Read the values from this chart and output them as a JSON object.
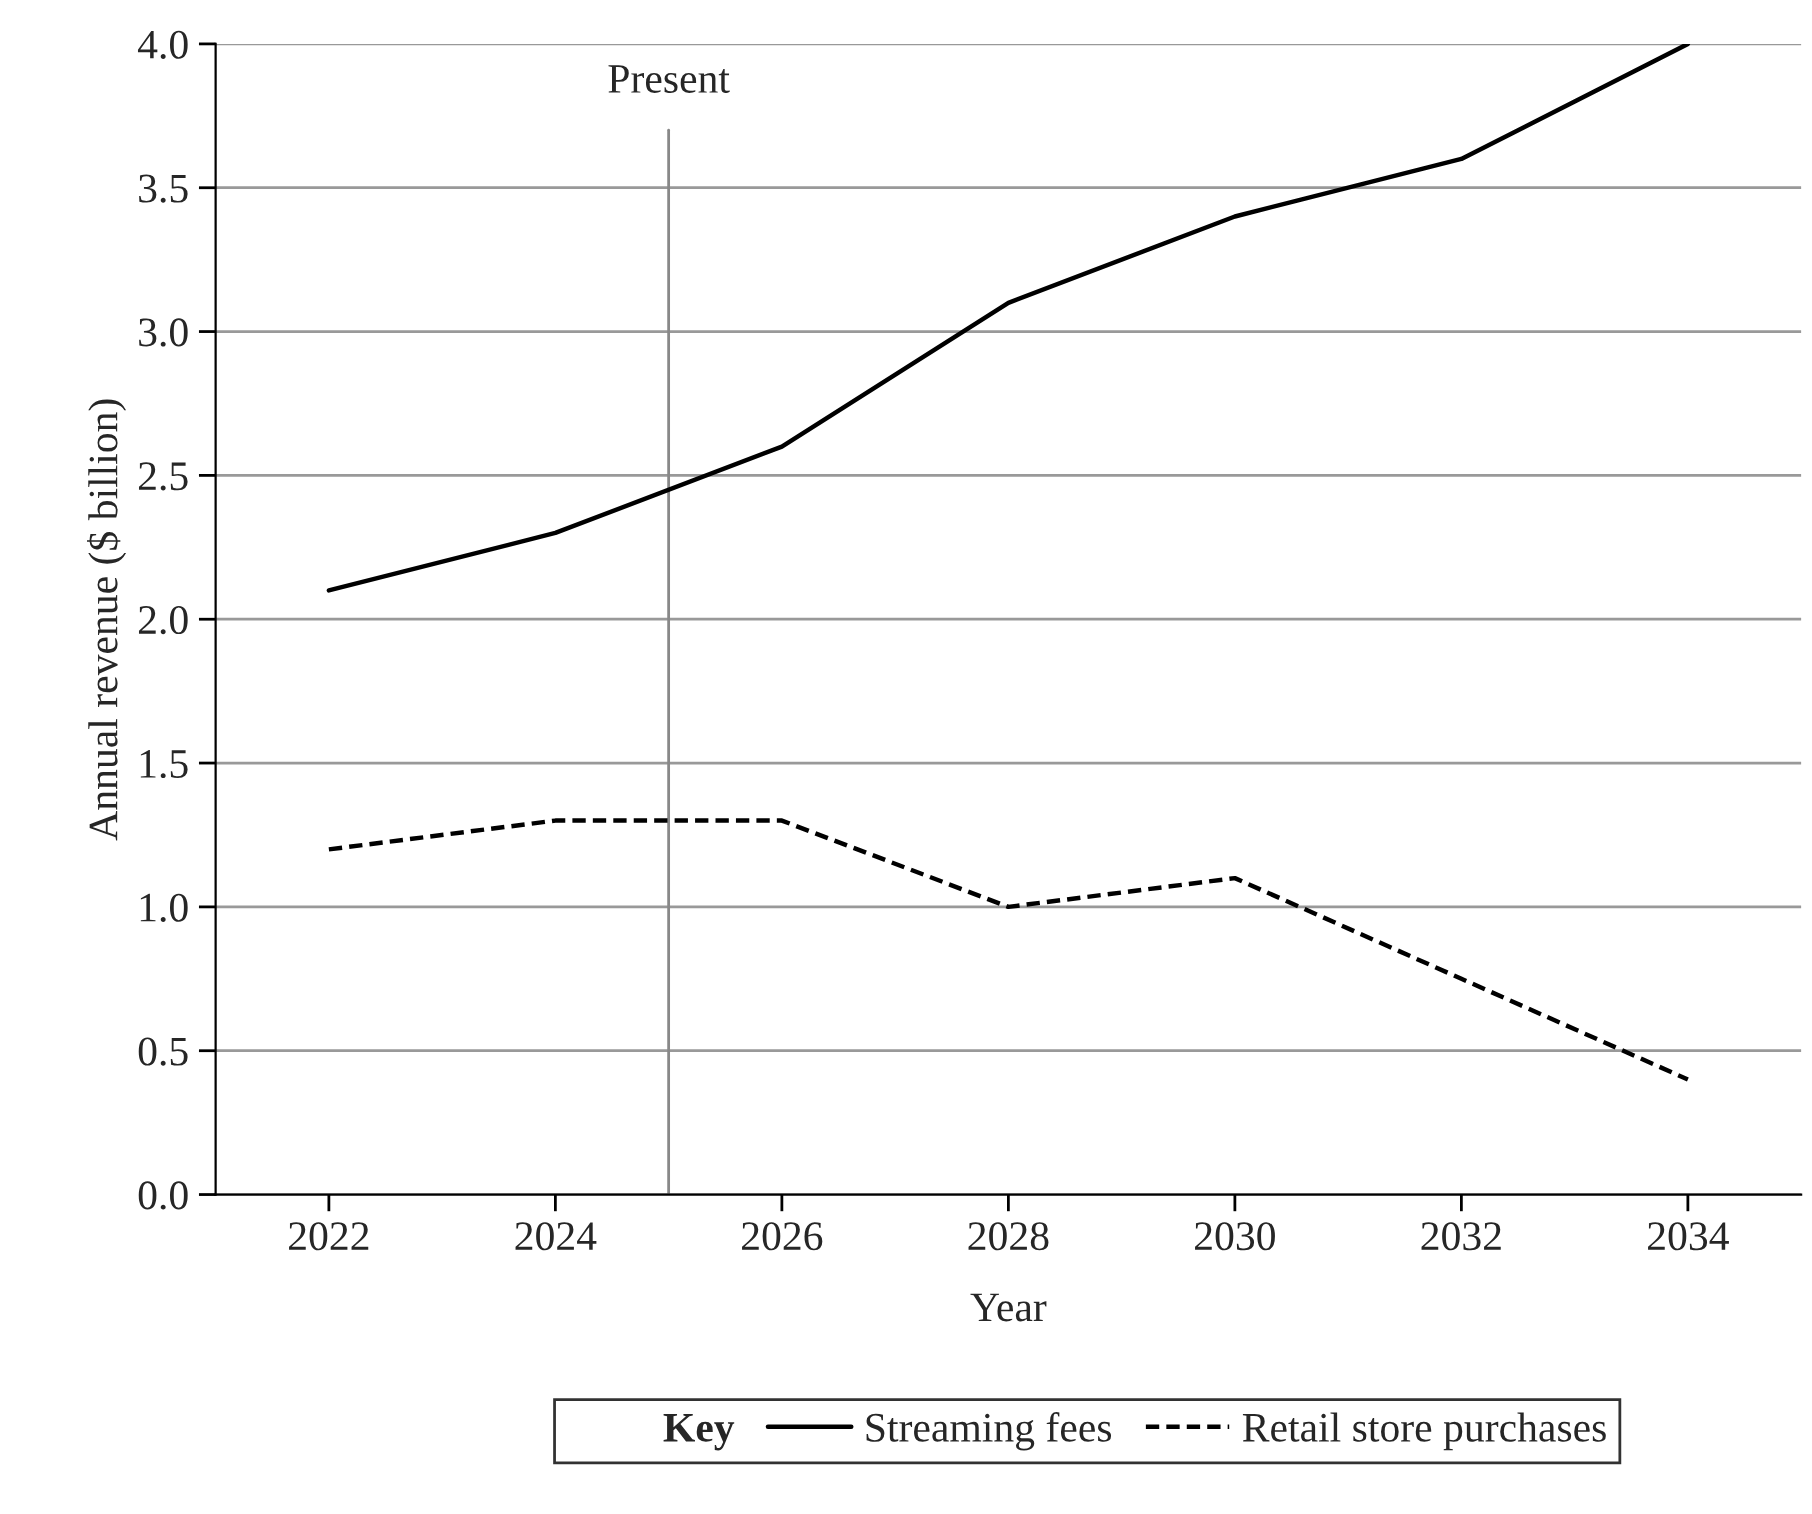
{
  "chart_data": {
    "type": "line",
    "xlabel": "Year",
    "ylabel": "Annual revenue ($ billion)",
    "legend_title": "Key",
    "x": [
      2022,
      2024,
      2026,
      2028,
      2030,
      2032,
      2034
    ],
    "series": [
      {
        "name": "Streaming fees",
        "color": "#000000",
        "line_style": "solid",
        "values": [
          2.1,
          2.3,
          2.6,
          3.1,
          3.4,
          3.6,
          4.0
        ]
      },
      {
        "name": "Retail store purchases",
        "color": "#000000",
        "line_style": "dashed",
        "values": [
          1.2,
          1.3,
          1.3,
          1.0,
          1.1,
          0.75,
          0.4
        ]
      }
    ],
    "xlim": [
      2021,
      2035
    ],
    "xticks": [
      2022,
      2024,
      2026,
      2028,
      2030,
      2032,
      2034
    ],
    "ylim": [
      0,
      4
    ],
    "yticks": [
      {
        "value": 0,
        "label": "0.0"
      },
      {
        "value": 0.5,
        "label": "0.5"
      },
      {
        "value": 1,
        "label": "1.0"
      },
      {
        "value": 1.5,
        "label": "1.5"
      },
      {
        "value": 2,
        "label": "2.0"
      },
      {
        "value": 2.5,
        "label": "2.5"
      },
      {
        "value": 3,
        "label": "3.0"
      },
      {
        "value": 3.5,
        "label": "3.5"
      },
      {
        "value": 4,
        "label": "4.0"
      }
    ],
    "ref_lines": [
      {
        "axis": "x",
        "value": 2025,
        "label": "Present",
        "color": "#888888"
      }
    ],
    "grid": "y",
    "legend": "bottom"
  }
}
